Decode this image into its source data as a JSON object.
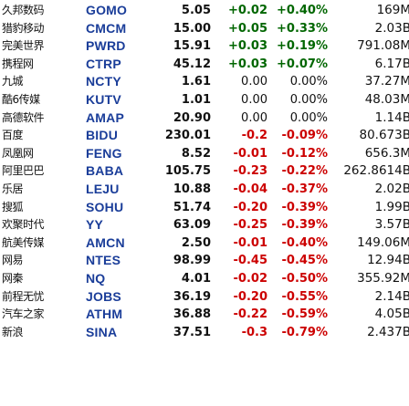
{
  "colors": {
    "symbol": "#1a3d99",
    "up": "#006600",
    "down": "#cc0000",
    "neutral": "#111111"
  },
  "rows": [
    {
      "name": "久邦数码",
      "symbol": "GOMO",
      "price": "5.05",
      "change": "+0.02",
      "pct": "+0.40%",
      "cap": "169M",
      "trend": "up"
    },
    {
      "name": "猎豹移动",
      "symbol": "CMCM",
      "price": "15.00",
      "change": "+0.05",
      "pct": "+0.33%",
      "cap": "2.03B",
      "trend": "up"
    },
    {
      "name": "完美世界",
      "symbol": "PWRD",
      "price": "15.91",
      "change": "+0.03",
      "pct": "+0.19%",
      "cap": "791.08M",
      "trend": "up"
    },
    {
      "name": "携程网",
      "symbol": "CTRP",
      "price": "45.12",
      "change": "+0.03",
      "pct": "+0.07%",
      "cap": "6.17B",
      "trend": "up"
    },
    {
      "name": "九城",
      "symbol": "NCTY",
      "price": "1.61",
      "change": "0.00",
      "pct": "0.00%",
      "cap": "37.27M",
      "trend": "flat"
    },
    {
      "name": "酷6传媒",
      "symbol": "KUTV",
      "price": "1.01",
      "change": "0.00",
      "pct": "0.00%",
      "cap": "48.03M",
      "trend": "flat"
    },
    {
      "name": "高德软件",
      "symbol": "AMAP",
      "price": "20.90",
      "change": "0.00",
      "pct": "0.00%",
      "cap": "1.14B",
      "trend": "flat"
    },
    {
      "name": "百度",
      "symbol": "BIDU",
      "price": "230.01",
      "change": "-0.2",
      "pct": "-0.09%",
      "cap": "80.673B",
      "trend": "down"
    },
    {
      "name": "凤凰网",
      "symbol": "FENG",
      "price": "8.52",
      "change": "-0.01",
      "pct": "-0.12%",
      "cap": "656.3M",
      "trend": "down"
    },
    {
      "name": "阿里巴巴",
      "symbol": "BABA",
      "price": "105.75",
      "change": "-0.23",
      "pct": "-0.22%",
      "cap": "262.8614B",
      "trend": "down"
    },
    {
      "name": "乐居",
      "symbol": "LEJU",
      "price": "10.88",
      "change": "-0.04",
      "pct": "-0.37%",
      "cap": "2.02B",
      "trend": "down"
    },
    {
      "name": "搜狐",
      "symbol": "SOHU",
      "price": "51.74",
      "change": "-0.20",
      "pct": "-0.39%",
      "cap": "1.99B",
      "trend": "down"
    },
    {
      "name": "欢聚时代",
      "symbol": "YY",
      "price": "63.09",
      "change": "-0.25",
      "pct": "-0.39%",
      "cap": "3.57B",
      "trend": "down"
    },
    {
      "name": "航美传媒",
      "symbol": "AMCN",
      "price": "2.50",
      "change": "-0.01",
      "pct": "-0.40%",
      "cap": "149.06M",
      "trend": "down"
    },
    {
      "name": "网易",
      "symbol": "NTES",
      "price": "98.99",
      "change": "-0.45",
      "pct": "-0.45%",
      "cap": "12.94B",
      "trend": "down"
    },
    {
      "name": "网秦",
      "symbol": "NQ",
      "price": "4.01",
      "change": "-0.02",
      "pct": "-0.50%",
      "cap": "355.92M",
      "trend": "down"
    },
    {
      "name": "前程无忧",
      "symbol": "JOBS",
      "price": "36.19",
      "change": "-0.20",
      "pct": "-0.55%",
      "cap": "2.14B",
      "trend": "down"
    },
    {
      "name": "汽车之家",
      "symbol": "ATHM",
      "price": "36.88",
      "change": "-0.22",
      "pct": "-0.59%",
      "cap": "4.05B",
      "trend": "down"
    },
    {
      "name": "新浪",
      "symbol": "SINA",
      "price": "37.51",
      "change": "-0.3",
      "pct": "-0.79%",
      "cap": "2.437B",
      "trend": "down"
    }
  ]
}
